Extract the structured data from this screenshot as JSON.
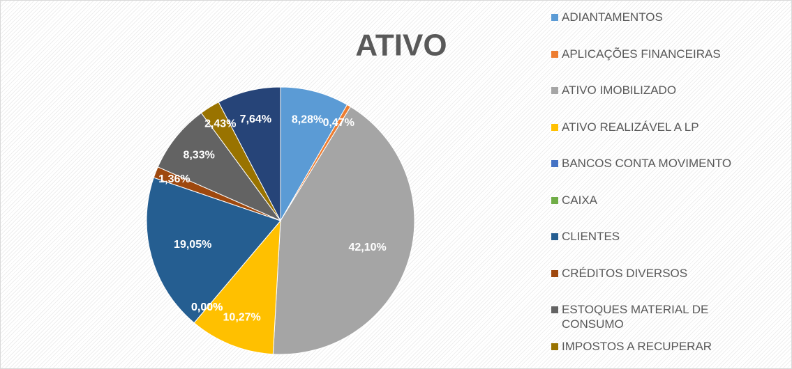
{
  "chart_data": {
    "type": "pie",
    "title": "ATIVO",
    "categories": [
      "ADIANTAMENTOS",
      "APLICAÇÕES FINANCEIRAS",
      "ATIVO IMOBILIZADO",
      "ATIVO REALIZÁVEL A LP",
      "BANCOS CONTA MOVIMENTO",
      "CAIXA",
      "CLIENTES",
      "CRÉDITOS DIVERSOS",
      "ESTOQUES MATERIAL DE CONSUMO",
      "IMPOSTOS A RECUPERAR",
      null
    ],
    "values": [
      8.28,
      0.47,
      42.1,
      10.27,
      0,
      0,
      19.05,
      1.36,
      8.33,
      2.43,
      7.64
    ],
    "value_labels": [
      "8,28%",
      "0,47%",
      "42,10%",
      "10,27%",
      "0,00%",
      "0,00%",
      "19,05%",
      "1,36%",
      "8,33%",
      "2,43%",
      "7,64%"
    ],
    "colors": [
      "#5b9bd5",
      "#ed7d31",
      "#a5a5a5",
      "#ffc000",
      "#4472c4",
      "#70ad47",
      "#255e91",
      "#9e480e",
      "#636363",
      "#997300",
      "#264478"
    ],
    "legend": "right"
  }
}
